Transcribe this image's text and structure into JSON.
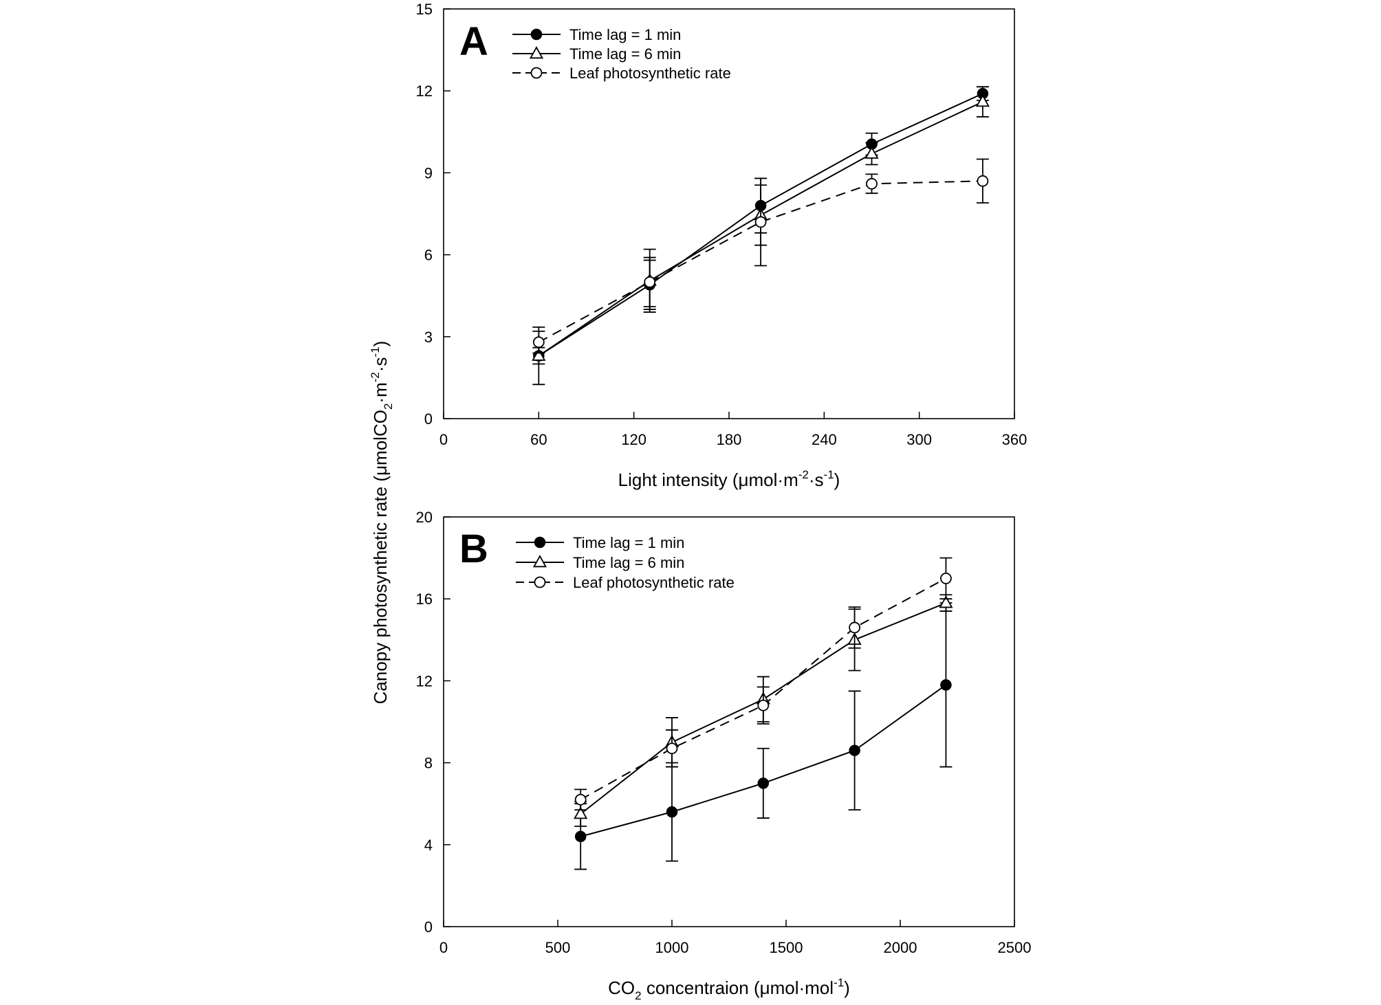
{
  "y_axis_shared": {
    "label_parts": [
      "Canopy photosynthetic rate (μmolCO",
      "2",
      "·m",
      "-2",
      "·s",
      "-1",
      ")"
    ]
  },
  "chart_data": [
    {
      "type": "line",
      "panel_label": "A",
      "xlabel_parts": [
        "Light intensity (μmol·m",
        "-2",
        "·s",
        "-1",
        ")"
      ],
      "xlim": [
        0,
        360
      ],
      "ylim": [
        0,
        15
      ],
      "xticks": [
        0,
        60,
        120,
        180,
        240,
        300,
        360
      ],
      "yticks": [
        0,
        3,
        6,
        9,
        12,
        15
      ],
      "grid": false,
      "legend_position": "top-left",
      "series": [
        {
          "name": "Time lag = 1 min",
          "marker": "filled-circle",
          "line": "solid",
          "x": [
            60,
            130,
            200,
            270,
            340
          ],
          "y": [
            2.3,
            4.9,
            7.8,
            10.05,
            11.9
          ],
          "err": [
            0.3,
            0.9,
            1.0,
            0.4,
            0.25
          ]
        },
        {
          "name": "Time lag = 6 min",
          "marker": "open-triangle",
          "line": "solid",
          "x": [
            60,
            130,
            200,
            270,
            340
          ],
          "y": [
            2.3,
            5.05,
            7.45,
            9.7,
            11.6
          ],
          "err": [
            1.05,
            1.15,
            1.1,
            0.4,
            0.55
          ]
        },
        {
          "name": "Leaf photosynthetic rate",
          "marker": "open-circle",
          "line": "dashed",
          "x": [
            60,
            130,
            200,
            270,
            340
          ],
          "y": [
            2.8,
            5.0,
            7.2,
            8.6,
            8.7
          ],
          "err": [
            0.4,
            0.9,
            1.6,
            0.35,
            0.8
          ]
        }
      ]
    },
    {
      "type": "line",
      "panel_label": "B",
      "xlabel_parts": [
        "CO",
        "2",
        " concentraion (μmol·mol",
        "-1",
        ")"
      ],
      "xlim": [
        0,
        2500
      ],
      "ylim": [
        0,
        20
      ],
      "xticks": [
        0,
        500,
        1000,
        1500,
        2000,
        2500
      ],
      "yticks": [
        0,
        4,
        8,
        12,
        16,
        20
      ],
      "grid": false,
      "legend_position": "top-left",
      "series": [
        {
          "name": "Time lag = 1 min",
          "marker": "filled-circle",
          "line": "solid",
          "x": [
            600,
            1000,
            1400,
            1800,
            2200
          ],
          "y": [
            4.4,
            5.6,
            7.0,
            8.6,
            11.8
          ],
          "err": [
            1.6,
            2.4,
            1.7,
            2.9,
            4.0
          ]
        },
        {
          "name": "Time lag = 6 min",
          "marker": "open-triangle",
          "line": "solid",
          "x": [
            600,
            1000,
            1400,
            1800,
            2200
          ],
          "y": [
            5.5,
            9.0,
            11.1,
            14.0,
            15.8
          ],
          "err": [
            0.6,
            1.2,
            1.1,
            1.5,
            0.4
          ]
        },
        {
          "name": "Leaf photosynthetic rate",
          "marker": "open-circle",
          "line": "dashed",
          "x": [
            600,
            1000,
            1400,
            1800,
            2200
          ],
          "y": [
            6.2,
            8.7,
            10.8,
            14.6,
            17.0
          ],
          "err": [
            0.5,
            0.9,
            0.9,
            1.0,
            1.0
          ]
        }
      ]
    }
  ]
}
